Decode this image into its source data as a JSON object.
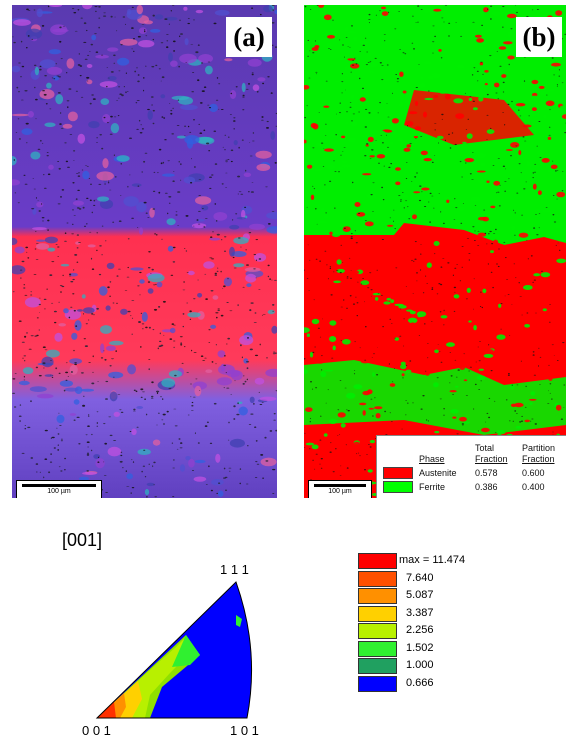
{
  "panels": {
    "a": {
      "label": "(a)",
      "scale_bar": "100 µm"
    },
    "b": {
      "label": "(b)",
      "scale_bar": "100 µm"
    }
  },
  "phase_table": {
    "headers": {
      "phase": "Phase",
      "total": "Total\nFraction",
      "partition": "Partition\nFraction"
    },
    "total_header_1": "Total",
    "total_header_2": "Fraction",
    "partition_header_1": "Partition",
    "partition_header_2": "Fraction",
    "rows": [
      {
        "name": "Austenite",
        "color": "#ff0000",
        "total": "0.578",
        "partition": "0.600"
      },
      {
        "name": "Ferrite",
        "color": "#00ff00",
        "total": "0.386",
        "partition": "0.400"
      }
    ]
  },
  "pole_figure": {
    "direction": "[001]",
    "corner_top": "1 1 1",
    "corner_left": "0 0 1",
    "corner_right": "1 0 1"
  },
  "colorbar": {
    "levels": [
      {
        "label": "max = 11.474",
        "color": "#ff0000"
      },
      {
        "label": "7.640",
        "color": "#ff5000"
      },
      {
        "label": "5.087",
        "color": "#ff9000"
      },
      {
        "label": "3.387",
        "color": "#ffd000"
      },
      {
        "label": "2.256",
        "color": "#b8f000"
      },
      {
        "label": "1.502",
        "color": "#30f030"
      },
      {
        "label": "1.000",
        "color": "#20a060"
      },
      {
        "label": "0.666",
        "color": "#0000ff"
      }
    ]
  }
}
